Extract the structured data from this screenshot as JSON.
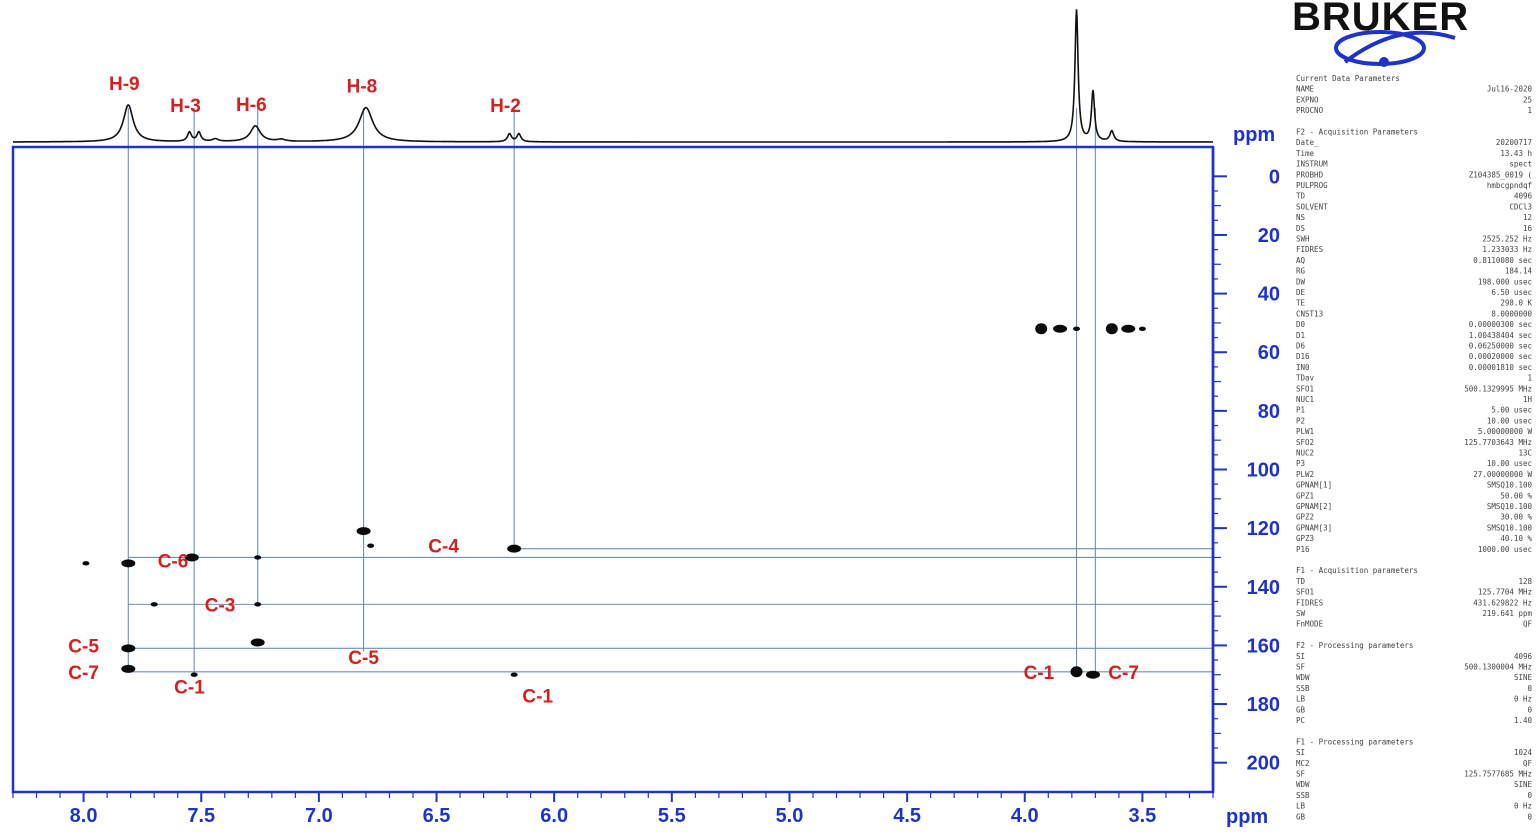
{
  "chart_data": {
    "type": "scatter",
    "title": "",
    "x_axis": {
      "label": "ppm",
      "range": [
        8.3,
        3.2
      ],
      "reversed": true,
      "ticks": [
        "8.0",
        "7.5",
        "7.0",
        "6.5",
        "6.0",
        "5.5",
        "5.0",
        "4.5",
        "4.0",
        "3.5"
      ]
    },
    "y_axis": {
      "label": "ppm",
      "range": [
        -10,
        210
      ],
      "reversed": true,
      "ticks": [
        "0",
        "20",
        "40",
        "60",
        "80",
        "100",
        "120",
        "140",
        "160",
        "180",
        "200"
      ]
    },
    "proton_spectrum": {
      "peaks": [
        {
          "shift": 7.81,
          "height": 0.28,
          "width": 0.025,
          "label": "H-9"
        },
        {
          "shift": 7.55,
          "height": 0.07,
          "width": 0.01,
          "label": "H-3"
        },
        {
          "shift": 7.51,
          "height": 0.07,
          "width": 0.01,
          "label": ""
        },
        {
          "shift": 7.27,
          "height": 0.12,
          "width": 0.025,
          "label": "H-6"
        },
        {
          "shift": 6.8,
          "height": 0.26,
          "width": 0.035,
          "label": "H-8"
        },
        {
          "shift": 6.19,
          "height": 0.06,
          "width": 0.01,
          "label": "H-2"
        },
        {
          "shift": 6.15,
          "height": 0.06,
          "width": 0.01,
          "label": ""
        },
        {
          "shift": 7.44,
          "height": 0.02,
          "width": 0.015,
          "label": ""
        },
        {
          "shift": 7.16,
          "height": 0.015,
          "width": 0.02,
          "label": ""
        },
        {
          "shift": 3.78,
          "height": 1.0,
          "width": 0.008,
          "label": ""
        },
        {
          "shift": 3.71,
          "height": 0.38,
          "width": 0.008,
          "label": ""
        },
        {
          "shift": 3.63,
          "height": 0.08,
          "width": 0.01,
          "label": ""
        }
      ]
    },
    "cross_peaks": [
      {
        "x": 7.99,
        "y": 132,
        "size": 1
      },
      {
        "x": 7.81,
        "y": 132,
        "size": 2
      },
      {
        "x": 7.81,
        "y": 161,
        "size": 2
      },
      {
        "x": 7.81,
        "y": 168,
        "size": 2
      },
      {
        "x": 7.7,
        "y": 146,
        "size": 1
      },
      {
        "x": 7.54,
        "y": 130,
        "size": 2
      },
      {
        "x": 7.53,
        "y": 170,
        "size": 1
      },
      {
        "x": 7.26,
        "y": 130,
        "size": 1
      },
      {
        "x": 7.26,
        "y": 146,
        "size": 1
      },
      {
        "x": 7.26,
        "y": 159,
        "size": 2
      },
      {
        "x": 6.81,
        "y": 121,
        "size": 2
      },
      {
        "x": 6.78,
        "y": 126,
        "size": 1
      },
      {
        "x": 6.17,
        "y": 127,
        "size": 2
      },
      {
        "x": 6.17,
        "y": 170,
        "size": 1
      },
      {
        "x": 3.93,
        "y": 52,
        "size": 3
      },
      {
        "x": 3.85,
        "y": 52,
        "size": 2
      },
      {
        "x": 3.78,
        "y": 52,
        "size": 1
      },
      {
        "x": 3.63,
        "y": 52,
        "size": 3
      },
      {
        "x": 3.56,
        "y": 52,
        "size": 2
      },
      {
        "x": 3.5,
        "y": 52,
        "size": 1
      },
      {
        "x": 3.78,
        "y": 169,
        "size": 3
      },
      {
        "x": 3.71,
        "y": 170,
        "size": 2
      }
    ],
    "correlation_lines": {
      "vertical": [
        {
          "x": 7.81,
          "y_end": 168
        },
        {
          "x": 7.53,
          "y_end": 170
        },
        {
          "x": 7.26,
          "y_end": 146
        },
        {
          "x": 6.81,
          "y_end": 162
        },
        {
          "x": 6.17,
          "y_end": 127
        },
        {
          "x": 3.78,
          "y_end": 169
        },
        {
          "x": 3.7,
          "y_end": 170
        }
      ],
      "horizontal": [
        {
          "y": 127,
          "x_from": 6.17
        },
        {
          "y": 130,
          "x_from": 7.81
        },
        {
          "y": 146,
          "x_from": 7.81
        },
        {
          "y": 161,
          "x_from": 7.81
        },
        {
          "y": 169,
          "x_from": 7.81
        }
      ]
    },
    "annotations": [
      {
        "text": "C-6",
        "x": 7.62,
        "y": 131
      },
      {
        "text": "C-3",
        "x": 7.42,
        "y": 146
      },
      {
        "text": "C-4",
        "x": 6.47,
        "y": 126
      },
      {
        "text": "C-5",
        "x": 8.0,
        "y": 160
      },
      {
        "text": "C-7",
        "x": 8.0,
        "y": 169
      },
      {
        "text": "C-1",
        "x": 7.55,
        "y": 174
      },
      {
        "text": "C-5",
        "x": 6.81,
        "y": 164
      },
      {
        "text": "C-1",
        "x": 6.07,
        "y": 177
      },
      {
        "text": "C-1",
        "x": 3.94,
        "y": 169
      },
      {
        "text": "C-7",
        "x": 3.58,
        "y": 169
      }
    ]
  },
  "logo": {
    "text": "BRUKER",
    "color": "#1f33c9"
  },
  "parameters": {
    "lines": [
      "Current Data Parameters",
      "NAME Jul16-2020",
      "EXPNO 25",
      "PROCNO 1",
      "",
      "F2 - Acquisition Parameters",
      "Date_ 20200717",
      "Time 13.43 h",
      "INSTRUM spect",
      "PROBHD Z104385_0019 (",
      "PULPROG hmbcgpndqf",
      "TD 4096",
      "SOLVENT CDCl3",
      "NS 12",
      "DS 16",
      "SWH 2525.252 Hz",
      "FIDRES 1.233033 Hz",
      "AQ 0.8110080 sec",
      "RG 184.14",
      "DW 198.000 usec",
      "DE 6.50 usec",
      "TE 298.0 K",
      "CNST13 8.0000000",
      "D0 0.00000300 sec",
      "D1 1.00438404 sec",
      "D6 0.06250000 sec",
      "D16 0.00020000 sec",
      "IN0 0.00001810 sec",
      "TDav 1",
      "SFO1 500.1329995 MHz",
      "NUC1 1H",
      "P1 5.00 usec",
      "P2 10.00 usec",
      "PLW1 5.00000000 W",
      "SFO2 125.7703643 MHz",
      "NUC2 13C",
      "P3 10.00 usec",
      "PLW2 27.00000000 W",
      "GPNAM[1] SMSQ10.100",
      "GPZ1 50.00 %",
      "GPNAM[2] SMSQ10.100",
      "GPZ2 30.00 %",
      "GPNAM[3] SMSQ10.100",
      "GPZ3 40.10 %",
      "P16 1000.00 usec",
      "",
      "F1 - Acquisition parameters",
      "TD 128",
      "SFO1 125.7704 MHz",
      "FIDRES 431.629822 Hz",
      "SW 219.641 ppm",
      "FnMODE QF",
      "",
      "F2 - Processing parameters",
      "SI 4096",
      "SF 500.1300004 MHz",
      "WDW SINE",
      "SSB 0",
      "LB 0 Hz",
      "GB 0",
      "PC 1.40",
      "",
      "F1 - Processing parameters",
      "SI 1024",
      "MC2 QF",
      "SF 125.7577685 MHz",
      "WDW SINE",
      "SSB 0",
      "LB 0 Hz",
      "GB 0"
    ]
  },
  "colors": {
    "frame": "#1f33c9",
    "label": "#d61f1f",
    "spectrum": "#111111",
    "line": "#6f8fb5",
    "peak": "#0a0a0a",
    "logo_swoosh": "#1f33c9"
  }
}
